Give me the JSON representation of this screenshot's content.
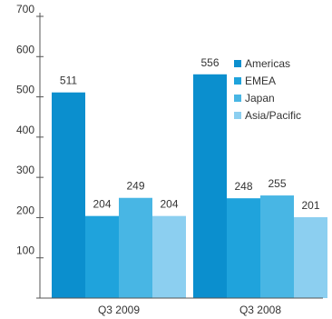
{
  "chart_data": {
    "type": "bar",
    "categories": [
      "Q3 2009",
      "Q3 2008"
    ],
    "series": [
      {
        "name": "Americas",
        "color": "#0b8fce",
        "values": [
          511,
          556
        ]
      },
      {
        "name": "EMEA",
        "color": "#1fa3dc",
        "values": [
          204,
          248
        ]
      },
      {
        "name": "Japan",
        "color": "#48b6e4",
        "values": [
          249,
          255
        ]
      },
      {
        "name": "Asia/Pacific",
        "color": "#8ccff0",
        "values": [
          204,
          201
        ]
      }
    ],
    "yticks": [
      100,
      200,
      300,
      400,
      500,
      600,
      700
    ],
    "ylim": [
      0,
      700
    ],
    "title": "",
    "xlabel": "",
    "ylabel": "",
    "grid": false,
    "legend_position": "inside-upper-right"
  }
}
